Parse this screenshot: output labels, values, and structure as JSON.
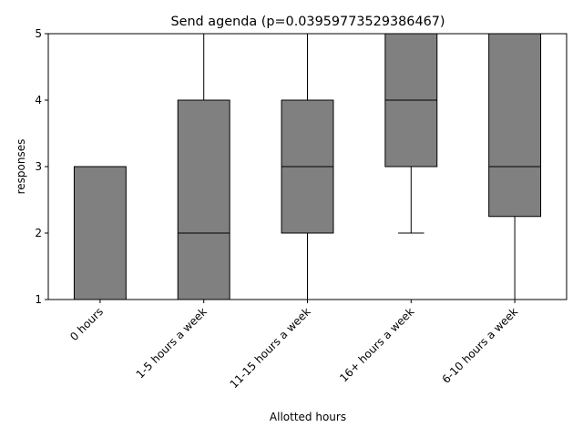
{
  "chart_data": {
    "type": "box",
    "title": "Send agenda (p=0.03959773529386467)",
    "xlabel": "Allotted hours",
    "ylabel": "responses",
    "ylim": [
      1,
      5
    ],
    "yticks": [
      "1",
      "2",
      "3",
      "4",
      "5"
    ],
    "grid": false,
    "categories": [
      "0 hours",
      "1-5 hours a week",
      "11-15 hours a week",
      "16+ hours a week",
      "6-10 hours a week"
    ],
    "boxes": [
      {
        "category": "0 hours",
        "whisker_low": 1,
        "q1": 1,
        "median": 1,
        "q3": 3,
        "whisker_high": 3
      },
      {
        "category": "1-5 hours a week",
        "whisker_low": 1,
        "q1": 1,
        "median": 2,
        "q3": 4,
        "whisker_high": 5
      },
      {
        "category": "11-15 hours a week",
        "whisker_low": 1,
        "q1": 2,
        "median": 3,
        "q3": 4,
        "whisker_high": 5
      },
      {
        "category": "16+ hours a week",
        "whisker_low": 2,
        "q1": 3,
        "median": 4,
        "q3": 5,
        "whisker_high": 5
      },
      {
        "category": "6-10 hours a week",
        "whisker_low": 1,
        "q1": 2.25,
        "median": 3,
        "q3": 5,
        "whisker_high": 5
      }
    ],
    "box_color": "#808080",
    "line_color": "#000000"
  }
}
